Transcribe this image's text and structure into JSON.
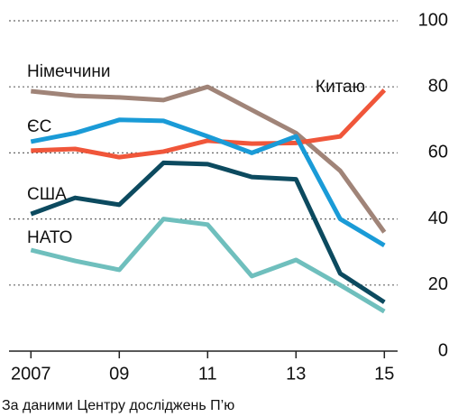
{
  "chart_data": {
    "type": "line",
    "source": "За даними Центру досліджень П’ю",
    "x": [
      2007,
      2008,
      2009,
      2010,
      2011,
      2012,
      2013,
      2014,
      2015
    ],
    "xlim": [
      2006.3,
      2015.3
    ],
    "xticks": [
      {
        "value": 2007,
        "label": "2007"
      },
      {
        "value": 2009,
        "label": "09"
      },
      {
        "value": 2011,
        "label": "11"
      },
      {
        "value": 2013,
        "label": "13"
      },
      {
        "value": 2015,
        "label": "15"
      }
    ],
    "ylim": [
      0,
      100
    ],
    "yticks": [
      0,
      20,
      40,
      60,
      80,
      100
    ],
    "grid": true,
    "series": [
      {
        "name": "Німеччини",
        "color": "#a08478",
        "values": [
          78.7,
          77.3,
          76.8,
          76,
          80,
          73,
          66,
          54.6,
          36
        ]
      },
      {
        "name": "Китаю",
        "color": "#f0563a",
        "values": [
          60.7,
          61.2,
          58.7,
          60.4,
          63.7,
          62.8,
          63,
          65,
          79
        ]
      },
      {
        "name": "ЄС",
        "color": "#1a9bd7",
        "values": [
          63.4,
          66,
          70,
          69.7,
          65,
          60,
          65,
          40,
          32
        ]
      },
      {
        "name": "США",
        "color": "#0c4a5f",
        "values": [
          41.5,
          46.4,
          44.3,
          57,
          56.6,
          52.7,
          52,
          23.5,
          14.8
        ]
      },
      {
        "name": "НАТО",
        "color": "#6fbfbd",
        "values": [
          30.6,
          27.3,
          24.6,
          40,
          38.3,
          22.7,
          27.6,
          20,
          12
        ]
      }
    ]
  }
}
